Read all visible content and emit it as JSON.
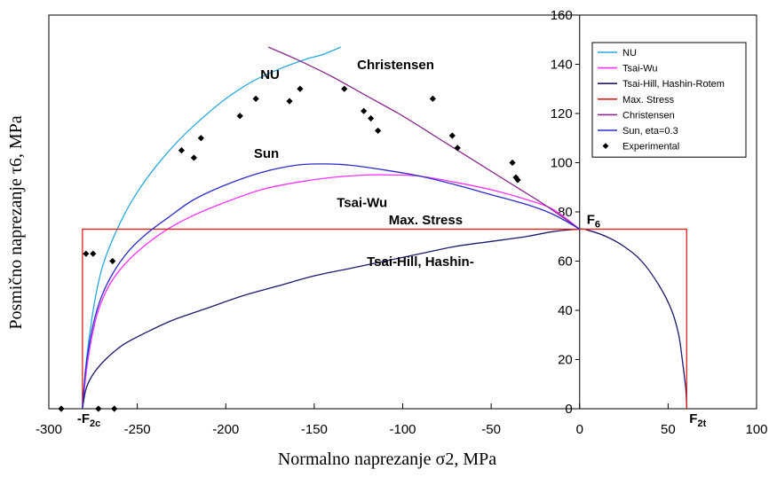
{
  "chart_data": {
    "type": "line",
    "xlabel": "Normalno naprezanje σ2, MPa",
    "ylabel": "Posmično naprezanje τ6, MPa",
    "xlim": [
      -300,
      100
    ],
    "ylim": [
      0,
      160
    ],
    "x_ticks": [
      {
        "v": -300,
        "t": "-300"
      },
      {
        "v": -250,
        "t": "-250"
      },
      {
        "v": -200,
        "t": "-200"
      },
      {
        "v": -150,
        "t": "-150"
      },
      {
        "v": -100,
        "t": "-100"
      },
      {
        "v": -50,
        "t": "-50"
      },
      {
        "v": 0,
        "t": "0"
      },
      {
        "v": 50,
        "t": "50"
      },
      {
        "v": 100,
        "t": "100"
      }
    ],
    "y_ticks": [
      {
        "v": 0,
        "t": "0"
      },
      {
        "v": 20,
        "t": "20"
      },
      {
        "v": 40,
        "t": "40"
      },
      {
        "v": 60,
        "t": "60"
      },
      {
        "v": 80,
        "t": "80"
      },
      {
        "v": 100,
        "t": "100"
      },
      {
        "v": 120,
        "t": "120"
      },
      {
        "v": 140,
        "t": "140"
      },
      {
        "v": 160,
        "t": "160"
      }
    ],
    "legend_position": "top-right",
    "series": [
      {
        "name": "NU",
        "color": "#29a8e0",
        "x": [
          -281,
          -279,
          -277,
          -274,
          -270,
          -265,
          -258,
          -250,
          -240,
          -228,
          -215,
          -200,
          -185,
          -170,
          -155,
          -145,
          -135
        ],
        "y": [
          0,
          18,
          30,
          44,
          57,
          67,
          78,
          88,
          98,
          108,
          117,
          126,
          133,
          138,
          142,
          144,
          147
        ]
      },
      {
        "name": "Tsai-Wu",
        "color": "#ff33ff",
        "x": [
          -281,
          -279,
          -276,
          -272,
          -266,
          -258,
          -248,
          -235,
          -220,
          -200,
          -180,
          -160,
          -140,
          -120,
          -105,
          -90,
          -70,
          -50,
          -30,
          -15,
          0
        ],
        "y": [
          0,
          14,
          28,
          40,
          50,
          58,
          65,
          72,
          78,
          84,
          89,
          92,
          94,
          95,
          95,
          94.5,
          92,
          89,
          85,
          81,
          73
        ]
      },
      {
        "name": "Tsai-Hill, Hashin-Rotem",
        "color": "#1a1a6e",
        "x": [
          -281,
          -279,
          -275,
          -268,
          -258,
          -245,
          -230,
          -210,
          -190,
          -170,
          -150,
          -130,
          -110,
          -90,
          -70,
          -50,
          -30,
          -15,
          0,
          5,
          15,
          25,
          35,
          45,
          52,
          56,
          58,
          60,
          60.5
        ],
        "y": [
          0,
          8,
          14,
          20,
          26,
          31,
          36,
          41,
          46,
          50,
          54,
          57,
          60,
          63,
          66,
          68,
          70,
          72,
          73,
          72.5,
          70,
          66,
          60,
          50,
          40,
          30,
          20,
          8,
          0
        ]
      },
      {
        "name": "Max. Stress",
        "color": "#e0231c",
        "x": [
          -281,
          -281,
          60.5,
          60.5
        ],
        "y": [
          0,
          73,
          73,
          0
        ]
      },
      {
        "name": "Christensen",
        "color": "#8a2a8c",
        "x": [
          -176,
          -160,
          -140,
          -120,
          -100,
          -80,
          -60,
          -40,
          -20,
          0
        ],
        "y": [
          147,
          142,
          135,
          127,
          119,
          110,
          101,
          92,
          83,
          73
        ]
      },
      {
        "name": "Sun, eta=0.3",
        "color": "#2b2bcc",
        "x": [
          -281,
          -279,
          -275,
          -270,
          -263,
          -255,
          -245,
          -232,
          -218,
          -200,
          -180,
          -160,
          -145,
          -130,
          -110,
          -90,
          -70,
          -50,
          -30,
          -15,
          0
        ],
        "y": [
          0,
          17,
          34,
          46,
          56,
          64,
          71,
          78,
          85,
          91,
          96,
          99,
          99.5,
          99,
          97,
          94.5,
          91,
          87,
          83,
          79,
          73
        ]
      }
    ],
    "experimental": {
      "name": "Experimental",
      "color": "#000000",
      "points": [
        [
          -293,
          0
        ],
        [
          -272,
          0
        ],
        [
          -263,
          0
        ],
        [
          -279,
          63
        ],
        [
          -275,
          63
        ],
        [
          -264,
          60
        ],
        [
          -225,
          105
        ],
        [
          -218,
          102
        ],
        [
          -214,
          110
        ],
        [
          -192,
          119
        ],
        [
          -183,
          126
        ],
        [
          -164,
          125
        ],
        [
          -158,
          130
        ],
        [
          -133,
          130
        ],
        [
          -122,
          121
        ],
        [
          -118,
          118
        ],
        [
          -114,
          113
        ],
        [
          -83,
          126
        ],
        [
          -72,
          111
        ],
        [
          -69,
          106
        ],
        [
          -38,
          100
        ],
        [
          -36,
          94
        ],
        [
          -35,
          93
        ]
      ]
    },
    "annotations": [
      {
        "text": "NU",
        "x": -175,
        "y": 134
      },
      {
        "text": "Christensen",
        "x": -104,
        "y": 138
      },
      {
        "text": "Sun",
        "x": -177,
        "y": 102
      },
      {
        "text": "Tsai-Wu",
        "x": -123,
        "y": 82
      },
      {
        "text": "Max. Stress",
        "x": -87,
        "y": 75
      },
      {
        "text": "Tsai-Hill, Hashin-",
        "x": -90,
        "y": 58
      }
    ],
    "point_labels": [
      {
        "main": "F",
        "sub": "6",
        "x": 4,
        "y": 77
      },
      {
        "main": "-F",
        "sub": "2c",
        "x": -284,
        "y": -4
      },
      {
        "main": "F",
        "sub": "2t",
        "x": 62,
        "y": -4
      }
    ]
  }
}
